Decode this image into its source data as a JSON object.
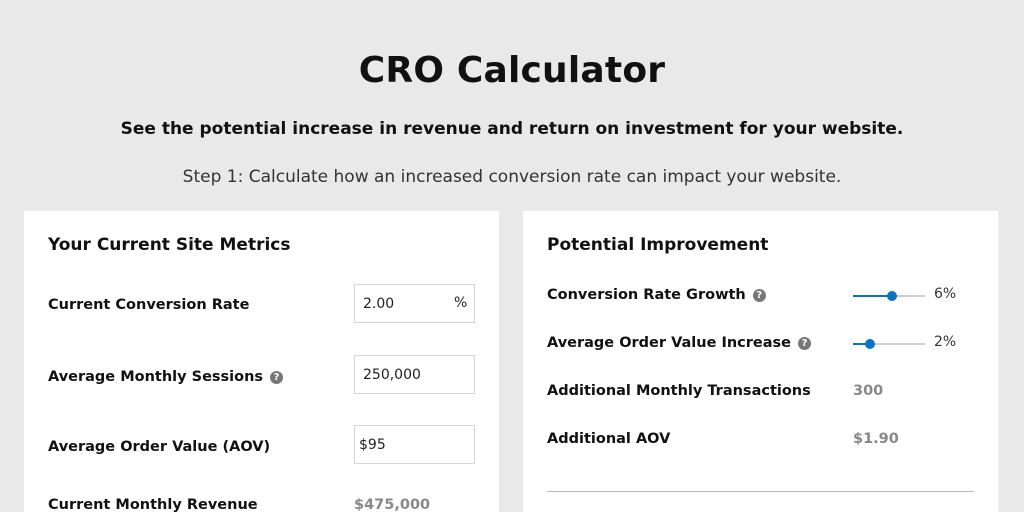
{
  "header": {
    "title": "CRO Calculator",
    "subtitle": "See the potential increase in revenue and return on investment for your website.",
    "step": "Step 1: Calculate how an increased conversion rate can impact your website."
  },
  "current": {
    "title": "Your Current Site Metrics",
    "conversion_rate": {
      "label": "Current Conversion Rate",
      "value": "2.00",
      "suffix": "%"
    },
    "sessions": {
      "label": "Average Monthly Sessions",
      "value": "250,000",
      "help_icon": "question-circle-icon"
    },
    "aov": {
      "label": "Average Order Value (AOV)",
      "value": "$95"
    },
    "revenue": {
      "label": "Current Monthly Revenue",
      "value": "$475,000"
    }
  },
  "improvement": {
    "title": "Potential Improvement",
    "conversion_growth": {
      "label": "Conversion Rate Growth",
      "value_label": "6%",
      "level": 0.54,
      "help_icon": "question-circle-icon"
    },
    "aov_increase": {
      "label": "Average Order Value Increase",
      "value_label": "2%",
      "level": 0.24,
      "help_icon": "question-circle-icon"
    },
    "transactions": {
      "label": "Additional Monthly Transactions",
      "value": "300"
    },
    "additional_aov": {
      "label": "Additional AOV",
      "value": "$1.90"
    }
  },
  "colors": {
    "accent": "#0a73c2",
    "background": "#e9e9e9",
    "muted_value": "#888888"
  }
}
